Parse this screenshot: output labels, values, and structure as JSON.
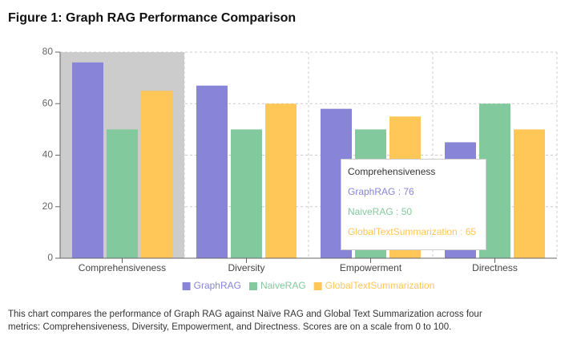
{
  "chart_data": {
    "type": "bar",
    "title": "Figure 1: Graph RAG Performance Comparison",
    "categories": [
      "Comprehensiveness",
      "Diversity",
      "Empowerment",
      "Directness"
    ],
    "series": [
      {
        "name": "GraphRAG",
        "color": "#8884d8",
        "values": [
          76,
          67,
          58,
          45
        ]
      },
      {
        "name": "NaiveRAG",
        "color": "#82ca9d",
        "values": [
          50,
          50,
          50,
          60
        ]
      },
      {
        "name": "GlobalTextSummarization",
        "color": "#ffc658",
        "values": [
          65,
          60,
          55,
          50
        ]
      }
    ],
    "ylim": [
      0,
      80
    ],
    "yticks": [
      0,
      20,
      40,
      60,
      80
    ],
    "grid": true,
    "legend": "bottom",
    "active_index": 0,
    "tooltip_separator": " : ",
    "caption": "This chart compares the performance of Graph RAG against Naïve RAG and Global Text Summarization across four metrics: Comprehensiveness, Diversity, Empowerment, and Directness. Scores are on a scale from 0 to 100."
  }
}
